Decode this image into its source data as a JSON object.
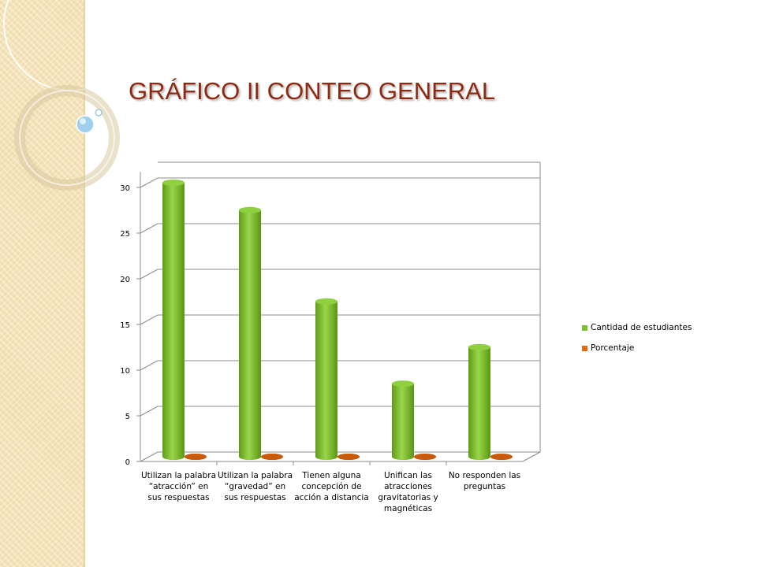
{
  "slide": {
    "title": "GRÁFICO II CONTEO GENERAL"
  },
  "colors": {
    "series_green": "#7cc22a",
    "series_orange": "#e06a10",
    "title": "#8b2a10",
    "background_strip": "#f4e3b8"
  },
  "chart_data": {
    "type": "bar",
    "title": "",
    "xlabel": "",
    "ylabel": "",
    "ylim": [
      0,
      30
    ],
    "yticks": [
      0,
      5,
      10,
      15,
      20,
      25,
      30
    ],
    "grid": true,
    "legend_position": "right",
    "categories": [
      "Utilizan la palabra “atracción” en sus respuestas",
      "Utilizan la palabra “gravedad” en sus respuestas",
      "Tienen alguna concepción de acción a distancia",
      "Unifican las atracciones gravitatorias y magnéticas",
      "No responden las preguntas"
    ],
    "series": [
      {
        "name": "Cantidad de estudiantes",
        "values": [
          30,
          27,
          17,
          8,
          12
        ]
      },
      {
        "name": "Porcentaje",
        "values": [
          0,
          0,
          0,
          0,
          0
        ]
      }
    ]
  }
}
